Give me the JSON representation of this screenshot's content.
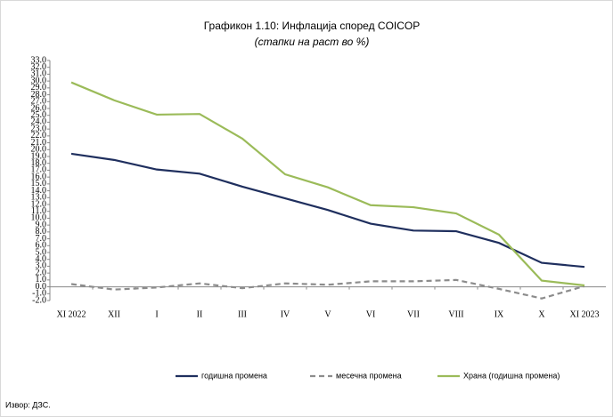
{
  "chart_data": {
    "type": "line",
    "title": "Графикон 1.10: Инфлација според COICOP",
    "subtitle": "(стапки на раст во %)",
    "source": "Извор: ДЗС.",
    "categories": [
      "XI 2022",
      "XII",
      "I",
      "II",
      "III",
      "IV",
      "V",
      "VI",
      "VII",
      "VIII",
      "IX",
      "X",
      "XI 2023"
    ],
    "series": [
      {
        "name": "годишна промена",
        "color": "#1f2f5e",
        "dash": false,
        "values": [
          19.4,
          18.5,
          17.1,
          16.5,
          14.6,
          12.9,
          11.2,
          9.2,
          8.2,
          8.1,
          6.4,
          3.5,
          2.9
        ]
      },
      {
        "name": "месечна промена",
        "color": "#8c8c8c",
        "dash": true,
        "values": [
          0.4,
          -0.4,
          -0.1,
          0.5,
          -0.2,
          0.5,
          0.3,
          0.8,
          0.8,
          1.0,
          -0.3,
          -1.7,
          0.1
        ]
      },
      {
        "name": "Храна (годишна промена)",
        "color": "#9bbb59",
        "dash": false,
        "values": [
          29.8,
          27.2,
          25.1,
          25.2,
          21.6,
          16.4,
          14.5,
          11.9,
          11.6,
          10.7,
          7.6,
          0.9,
          0.2
        ]
      }
    ],
    "ylim": [
      -2,
      33
    ],
    "yticks": [
      {
        "value": -2,
        "label": "-2.0"
      },
      {
        "value": -1,
        "label": "-1.0"
      },
      {
        "value": 0,
        "label": "0.0"
      },
      {
        "value": 1,
        "label": "1.0"
      },
      {
        "value": 2,
        "label": "2.0"
      },
      {
        "value": 3,
        "label": "3.0"
      },
      {
        "value": 4,
        "label": "4.0"
      },
      {
        "value": 5,
        "label": "5.0"
      },
      {
        "value": 6,
        "label": "6.0"
      },
      {
        "value": 7,
        "label": "7.0"
      },
      {
        "value": 8,
        "label": "8.0"
      },
      {
        "value": 9,
        "label": "9.0"
      },
      {
        "value": 10,
        "label": "10.0"
      },
      {
        "value": 11,
        "label": "11.0"
      },
      {
        "value": 12,
        "label": "12.0"
      },
      {
        "value": 13,
        "label": "13.0"
      },
      {
        "value": 14,
        "label": "14.0"
      },
      {
        "value": 15,
        "label": "15.0"
      },
      {
        "value": 16,
        "label": "16.0"
      },
      {
        "value": 17,
        "label": "17.0"
      },
      {
        "value": 18,
        "label": "18.0"
      },
      {
        "value": 19,
        "label": "19.0"
      },
      {
        "value": 20,
        "label": "20.0"
      },
      {
        "value": 21,
        "label": "21.0"
      },
      {
        "value": 22,
        "label": "22.0"
      },
      {
        "value": 23,
        "label": "23.0"
      },
      {
        "value": 24,
        "label": "24.0"
      },
      {
        "value": 25,
        "label": "25.0"
      },
      {
        "value": 26,
        "label": "26.0"
      },
      {
        "value": 27,
        "label": "27.0"
      },
      {
        "value": 28,
        "label": "28.0"
      },
      {
        "value": 29,
        "label": "29.0"
      },
      {
        "value": 30,
        "label": "30.0"
      },
      {
        "value": 31,
        "label": "31.0"
      },
      {
        "value": 32,
        "label": "32.0"
      },
      {
        "value": 33,
        "label": "33.0"
      }
    ],
    "grid": false,
    "legend": "bottom"
  }
}
